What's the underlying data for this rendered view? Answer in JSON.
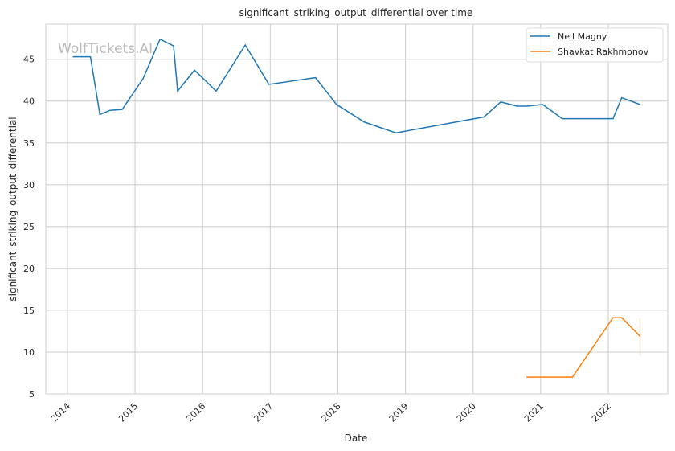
{
  "chart_data": {
    "type": "line",
    "title": "significant_striking_output_differential over time",
    "xlabel": "Date",
    "ylabel": "significant_striking_output_differential",
    "watermark": "WolfTickets.AI",
    "xlim": [
      2013.68,
      2022.88
    ],
    "ylim": [
      5,
      49.2
    ],
    "x_ticks": [
      2014,
      2015,
      2016,
      2017,
      2018,
      2019,
      2020,
      2021,
      2022
    ],
    "y_ticks": [
      5,
      10,
      15,
      20,
      25,
      30,
      35,
      40,
      45
    ],
    "grid": true,
    "legend_position": "top-right",
    "series": [
      {
        "name": "Neil Magny",
        "color": "#1f77b4",
        "x": [
          2014.08,
          2014.34,
          2014.48,
          2014.63,
          2014.81,
          2015.12,
          2015.37,
          2015.57,
          2015.63,
          2015.88,
          2016.2,
          2016.63,
          2016.98,
          2017.67,
          2017.98,
          2018.39,
          2018.86,
          2020.16,
          2020.41,
          2020.65,
          2020.8,
          2021.03,
          2021.32,
          2022.07,
          2022.2,
          2022.47
        ],
        "y": [
          45.3,
          45.3,
          38.4,
          38.9,
          39.0,
          42.7,
          47.4,
          46.6,
          41.2,
          43.7,
          41.2,
          46.7,
          42.0,
          42.8,
          39.6,
          37.5,
          36.2,
          38.1,
          39.9,
          39.4,
          39.4,
          39.6,
          37.9,
          37.9,
          40.4,
          39.6
        ]
      },
      {
        "name": "Shavkat Rakhmonov",
        "color": "#ff7f0e",
        "x": [
          2020.79,
          2021.47,
          2022.07,
          2022.2,
          2022.47
        ],
        "y": [
          7.0,
          7.0,
          14.1,
          14.1,
          11.9
        ],
        "ci": {
          "x": 2022.47,
          "low": 9.6,
          "high": 14.0
        }
      }
    ]
  }
}
